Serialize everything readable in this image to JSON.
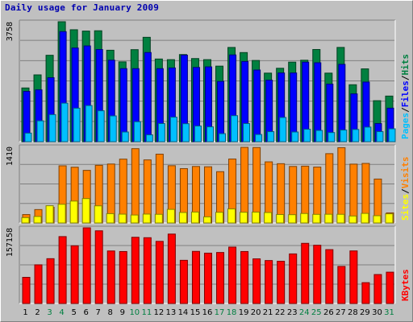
{
  "chart_data": {
    "type": "bar",
    "title": "Daily usage for January 2009",
    "categories": [
      "1",
      "2",
      "3",
      "4",
      "5",
      "6",
      "7",
      "8",
      "9",
      "10",
      "11",
      "12",
      "13",
      "14",
      "15",
      "16",
      "17",
      "18",
      "19",
      "20",
      "21",
      "22",
      "23",
      "24",
      "25",
      "26",
      "27",
      "28",
      "29",
      "30",
      "31"
    ],
    "weekend_days": [
      "3",
      "4",
      "10",
      "11",
      "17",
      "18",
      "24",
      "25",
      "31"
    ],
    "weekend_color": "#007f40",
    "panels": [
      {
        "scale_label": "3758",
        "ylim": [
          0,
          3758
        ],
        "series": [
          {
            "name": "Hits",
            "color": "#008040",
            "values": [
              1683,
              2093,
              2707,
              3758,
              3507,
              3465,
              3475,
              2865,
              2500,
              2883,
              3270,
              2590,
              2570,
              2730,
              2604,
              2570,
              2367,
              2952,
              2792,
              2544,
              2148,
              2300,
              2492,
              2552,
              2888,
              2148,
              2953,
              1784,
              2281,
              1284,
              1429
            ]
          },
          {
            "name": "Files",
            "color": "#0000ff",
            "values": [
              1575,
              1624,
              2004,
              3447,
              2935,
              3000,
              2887,
              2553,
              2289,
              2288,
              2793,
              2288,
              2310,
              2711,
              2326,
              2344,
              1888,
              2718,
              2512,
              2245,
              1927,
              2153,
              2153,
              2491,
              2472,
              1804,
              2422,
              1498,
              1868,
              568,
              1050
            ]
          },
          {
            "name": "Pages",
            "color": "#00c0ff",
            "values": [
              268,
              653,
              848,
              1207,
              1049,
              1132,
              968,
              807,
              303,
              625,
              214,
              568,
              768,
              563,
              491,
              465,
              251,
              815,
              568,
              225,
              314,
              758,
              303,
              390,
              352,
              286,
              365,
              383,
              457,
              315,
              403
            ]
          }
        ]
      },
      {
        "scale_label": "1410",
        "ylim": [
          0,
          1410
        ],
        "series": [
          {
            "name": "Visits",
            "color": "#ff8000",
            "values": [
              155,
              247,
              289,
              1054,
              1028,
              970,
              1064,
              1087,
              1177,
              1370,
              1163,
              1269,
              1056,
              1002,
              1042,
              1036,
              946,
              1179,
              1394,
              1391,
              1127,
              1093,
              1042,
              1048,
              1031,
              1278,
              1388,
              1085,
              1098,
              810,
              186
            ]
          },
          {
            "name": "Sites",
            "color": "#ffff00",
            "values": [
              99,
              120,
              318,
              345,
              404,
              450,
              316,
              172,
              163,
              147,
              164,
              160,
              251,
              194,
              202,
              113,
              197,
              260,
              198,
              201,
              193,
              156,
              153,
              175,
              159,
              161,
              160,
              129,
              177,
              134,
              169
            ]
          }
        ]
      },
      {
        "scale_label": "157158",
        "ylim": [
          0,
          157158
        ],
        "series": [
          {
            "name": "KBytes",
            "color": "#ff0000",
            "values": [
              54322,
              80318,
              93064,
              138922,
              119844,
              157158,
              150936,
              109088,
              107902,
              137512,
              136622,
              129016,
              144162,
              89684,
              108216,
              104570,
              105916,
              117124,
              107916,
              92720,
              89212,
              87688,
              102974,
              124934,
              120982,
              111846,
              77018,
              109188,
              43276,
              60128,
              65044
            ]
          }
        ]
      }
    ],
    "legend": {
      "panel1": [
        {
          "text": "Hits",
          "color": "#008040"
        },
        {
          "text": "Files",
          "color": "#0000ff"
        },
        {
          "text": "Pages",
          "color": "#00c0ff"
        }
      ],
      "panel2": [
        {
          "text": "Visits",
          "color": "#ff8000"
        },
        {
          "text": "Sites",
          "color": "#ffff00"
        }
      ],
      "panel3": [
        {
          "text": "KBytes",
          "color": "#ff0000"
        }
      ],
      "separator": "/"
    }
  }
}
